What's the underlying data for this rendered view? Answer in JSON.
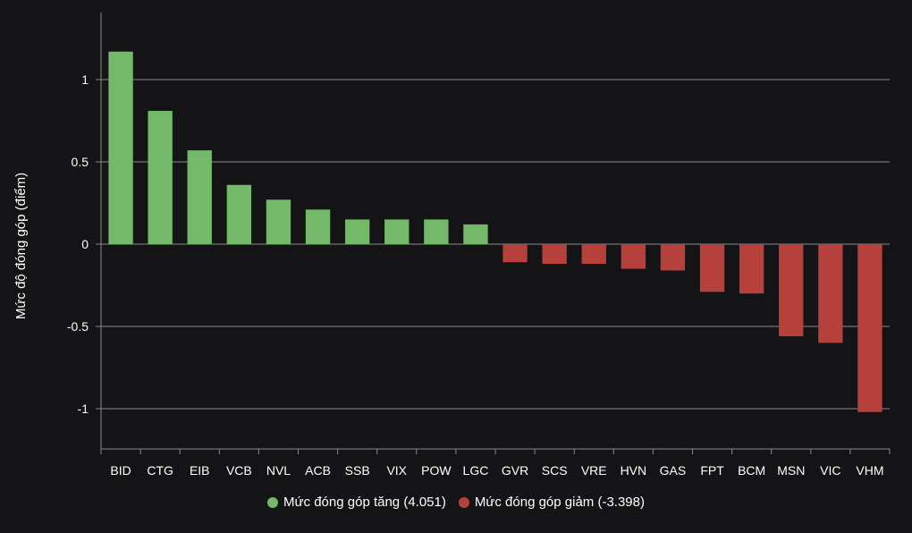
{
  "chart_data": {
    "type": "bar",
    "ylabel": "Mức độ đóng góp (điểm)",
    "ylim": [
      -1.25,
      1.4
    ],
    "yticks": [
      {
        "value": 1,
        "label": "1"
      },
      {
        "value": 0.5,
        "label": "0.5"
      },
      {
        "value": 0,
        "label": "0"
      },
      {
        "value": -0.5,
        "label": "-0.5"
      },
      {
        "value": -1,
        "label": "-1"
      }
    ],
    "categories": [
      "BID",
      "CTG",
      "EIB",
      "VCB",
      "NVL",
      "ACB",
      "SSB",
      "VIX",
      "POW",
      "LGC",
      "GVR",
      "SCS",
      "VRE",
      "HVN",
      "GAS",
      "FPT",
      "BCM",
      "MSN",
      "VIC",
      "VHM"
    ],
    "series": [
      {
        "name": "Mức đóng góp tăng (4.051)",
        "color": "#74b96a",
        "values": [
          1.17,
          0.81,
          0.57,
          0.36,
          0.27,
          0.21,
          0.15,
          0.15,
          0.15,
          0.12,
          null,
          null,
          null,
          null,
          null,
          null,
          null,
          null,
          null,
          null
        ]
      },
      {
        "name": "Mức đóng góp giảm (-3.398)",
        "color": "#b5403c",
        "values": [
          null,
          null,
          null,
          null,
          null,
          null,
          null,
          null,
          null,
          null,
          -0.11,
          -0.12,
          -0.12,
          -0.15,
          -0.16,
          -0.29,
          -0.3,
          -0.56,
          -0.6,
          -1.02
        ]
      }
    ]
  }
}
